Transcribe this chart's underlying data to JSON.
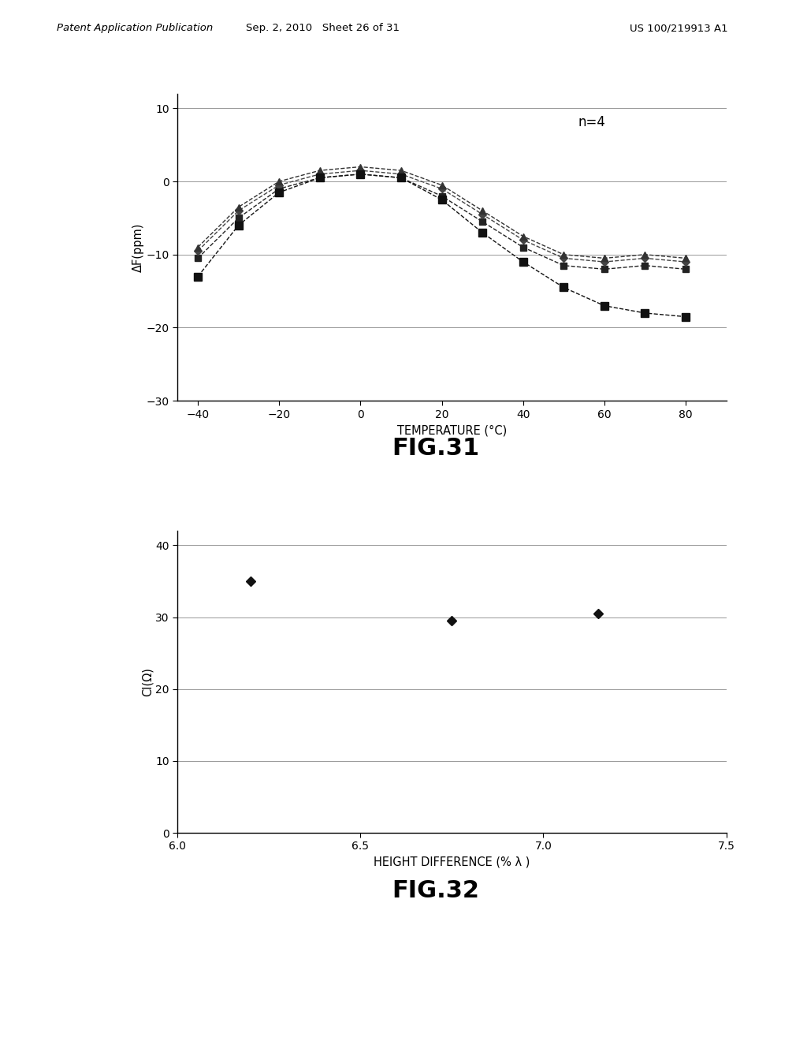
{
  "fig31": {
    "title": "n=4",
    "xlabel": "TEMPERATURE (°C)",
    "ylabel": "ΔF(ppm)",
    "xlim": [
      -45,
      90
    ],
    "ylim": [
      -30,
      12
    ],
    "xticks": [
      -40,
      -20,
      0,
      20,
      40,
      60,
      80
    ],
    "yticks": [
      -30,
      -20,
      -10,
      0,
      10
    ],
    "series": [
      {
        "x": [
          -40,
          -30,
          -20,
          -10,
          0,
          10,
          20,
          30,
          40,
          50,
          60,
          70,
          80
        ],
        "y": [
          -10.5,
          -5.0,
          -1.0,
          0.5,
          1.0,
          0.5,
          -2.0,
          -5.5,
          -9.0,
          -11.5,
          -12.0,
          -11.5,
          -12.0
        ],
        "marker": "s",
        "linestyle": "--",
        "color": "#222222",
        "markersize": 6
      },
      {
        "x": [
          -40,
          -30,
          -20,
          -10,
          0,
          10,
          20,
          30,
          40,
          50,
          60,
          70,
          80
        ],
        "y": [
          -9.5,
          -4.0,
          -0.5,
          1.0,
          1.5,
          1.0,
          -1.0,
          -4.5,
          -8.0,
          -10.5,
          -11.0,
          -10.5,
          -11.0
        ],
        "marker": "D",
        "linestyle": "--",
        "color": "#444444",
        "markersize": 5
      },
      {
        "x": [
          -40,
          -30,
          -20,
          -10,
          0,
          10,
          20,
          30,
          40,
          50,
          60,
          70,
          80
        ],
        "y": [
          -9.0,
          -3.5,
          0.0,
          1.5,
          2.0,
          1.5,
          -0.5,
          -4.0,
          -7.5,
          -10.0,
          -10.5,
          -10.0,
          -10.5
        ],
        "marker": "^",
        "linestyle": "--",
        "color": "#333333",
        "markersize": 6
      },
      {
        "x": [
          -40,
          -30,
          -20,
          -10,
          0,
          10,
          20,
          30,
          40,
          50,
          60,
          70,
          80
        ],
        "y": [
          -13.0,
          -6.0,
          -1.5,
          0.5,
          1.0,
          0.5,
          -2.5,
          -7.0,
          -11.0,
          -14.5,
          -17.0,
          -18.0,
          -18.5
        ],
        "marker": "s",
        "linestyle": "--",
        "color": "#111111",
        "markersize": 7
      }
    ]
  },
  "fig32": {
    "xlabel": "HEIGHT DIFFERENCE (% λ )",
    "ylabel": "CI(Ω)",
    "xlim": [
      6.0,
      7.5
    ],
    "ylim": [
      0,
      42
    ],
    "xticks": [
      6.0,
      6.5,
      7.0,
      7.5
    ],
    "yticks": [
      0,
      10,
      20,
      30,
      40
    ],
    "points_x": [
      6.2,
      6.75,
      7.15
    ],
    "points_y": [
      35.0,
      29.5,
      30.5
    ],
    "marker": "D",
    "color": "#111111",
    "markersize": 6
  },
  "header": {
    "left": "Patent Application Publication",
    "center": "Sep. 2, 2010   Sheet 26 of 31",
    "right": "US 100/219913 A1"
  },
  "fig31_label": "FIG.31",
  "fig32_label": "FIG.32",
  "background_color": "#ffffff"
}
